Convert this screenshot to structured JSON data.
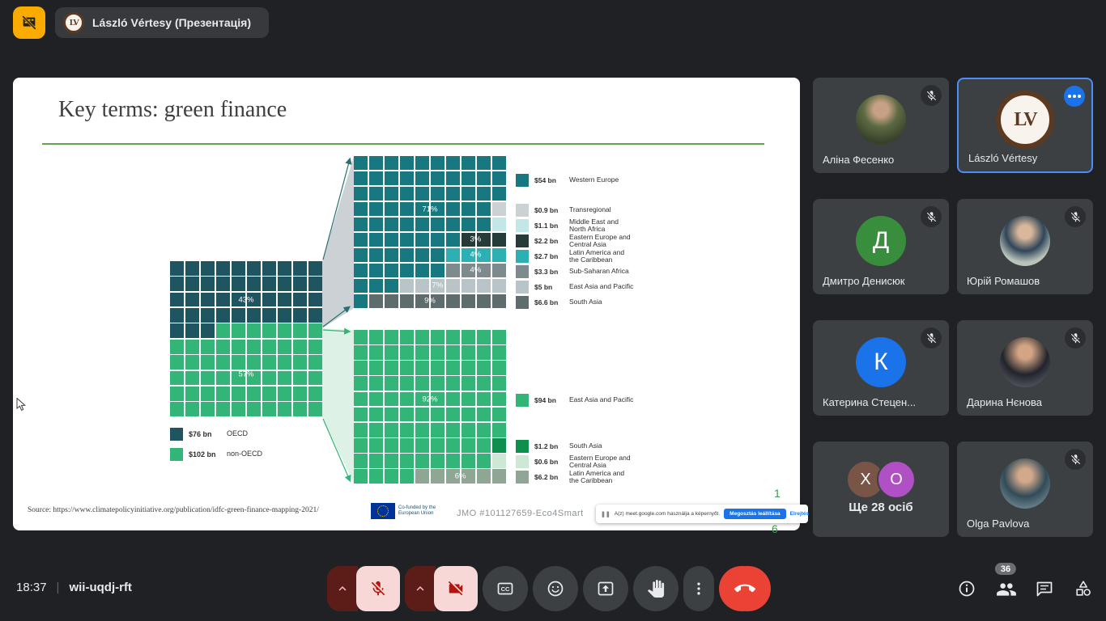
{
  "top_bar": {
    "presenter_chip": {
      "name": "László Vértesy (Презентація)",
      "avatar_monogram": "LV"
    }
  },
  "slide": {
    "title": "Key terms: green finance",
    "source": "Source: https://www.climatepolicyinitiative.org/publication/idfc-green-finance-mapping-2021/",
    "project_code": "JMO  #101127659-Eco4Smart",
    "eu_logo_text": "Co-funded by the\nEuropean Union",
    "page_number_top": "1",
    "page_number_bottom": "6"
  },
  "share_popup": {
    "pause_glyph": "❚❚",
    "message": "A(z) meet.google.com használja a képernyőt.",
    "stop_button": "Megosztás leállítása",
    "hide_link": "Elrejtés"
  },
  "chart_data": {
    "type": "waffle",
    "title": "Key terms: green finance",
    "units": "USD bn",
    "grids": [
      {
        "id": "overall",
        "rows": 10,
        "cols": 10,
        "segments": [
          {
            "name": "OECD",
            "value_label": "$76 bn",
            "value_bn": 76,
            "percent": 43,
            "color": "#1e5560"
          },
          {
            "name": "non-OECD",
            "value_label": "$102 bn",
            "value_bn": 102,
            "percent": 57,
            "color": "#33b577"
          }
        ],
        "row_layout": [
          [
            [
              0,
              10
            ]
          ],
          [
            [
              0,
              10
            ]
          ],
          [
            [
              0,
              10
            ]
          ],
          [
            [
              0,
              10
            ]
          ],
          [
            [
              0,
              3
            ],
            [
              1,
              7
            ]
          ],
          [
            [
              1,
              10
            ]
          ],
          [
            [
              1,
              10
            ]
          ],
          [
            [
              1,
              10
            ]
          ],
          [
            [
              1,
              10
            ]
          ],
          [
            [
              1,
              10
            ]
          ]
        ],
        "labels": [
          {
            "text": "43%",
            "row": 3,
            "col": 5.5
          },
          {
            "text": "57%",
            "row": 7.8,
            "col": 5.5
          }
        ]
      },
      {
        "id": "oecd",
        "rows": 10,
        "cols": 10,
        "segments": [
          {
            "name": "Western Europe",
            "value_label": "$54 bn",
            "value_bn": 54,
            "percent": 71,
            "color": "#17797f"
          },
          {
            "name": "Transregional",
            "value_label": "$0.9 bn",
            "value_bn": 0.9,
            "percent": 1,
            "color": "#ccd2d4"
          },
          {
            "name": "Middle East and\nNorth Africa",
            "value_label": "$1.1 bn",
            "value_bn": 1.1,
            "percent": 1,
            "color": "#c3e6e8"
          },
          {
            "name": "Eastern Europe and\nCentral Asia",
            "value_label": "$2.2 bn",
            "value_bn": 2.2,
            "percent": 3,
            "color": "#253c3a"
          },
          {
            "name": "Latin America and\nthe Caribbean",
            "value_label": "$2.7 bn",
            "value_bn": 2.7,
            "percent": 4,
            "color": "#2cb0b4"
          },
          {
            "name": "Sub-Saharan Africa",
            "value_label": "$3.3 bn",
            "value_bn": 3.3,
            "percent": 4,
            "color": "#7d8b8e"
          },
          {
            "name": "East Asia and Pacific",
            "value_label": "$5 bn",
            "value_bn": 5,
            "percent": 7,
            "color": "#b9c4c8"
          },
          {
            "name": "South Asia",
            "value_label": "$6.6 bn",
            "value_bn": 6.6,
            "percent": 9,
            "color": "#5e6c6d"
          }
        ],
        "row_layout": [
          [
            [
              0,
              10
            ]
          ],
          [
            [
              0,
              10
            ]
          ],
          [
            [
              0,
              10
            ]
          ],
          [
            [
              0,
              9
            ],
            [
              1,
              1
            ]
          ],
          [
            [
              0,
              9
            ],
            [
              2,
              1
            ]
          ],
          [
            [
              0,
              7
            ],
            [
              3,
              3
            ]
          ],
          [
            [
              0,
              6
            ],
            [
              4,
              4
            ]
          ],
          [
            [
              0,
              6
            ],
            [
              5,
              4
            ]
          ],
          [
            [
              0,
              3
            ],
            [
              6,
              7
            ]
          ],
          [
            [
              0,
              1
            ],
            [
              7,
              9
            ]
          ]
        ],
        "labels": [
          {
            "text": "71%",
            "row": 4,
            "col": 5.5
          },
          {
            "text": "3%",
            "row": 6,
            "col": 8.5
          },
          {
            "text": "4%",
            "row": 7,
            "col": 8.5
          },
          {
            "text": "4%",
            "row": 8,
            "col": 8.5
          },
          {
            "text": "7%",
            "row": 9,
            "col": 6
          },
          {
            "text": "9%",
            "row": 10,
            "col": 5.5
          }
        ]
      },
      {
        "id": "nonoecd",
        "rows": 10,
        "cols": 10,
        "segments": [
          {
            "name": "East Asia and Pacific",
            "value_label": "$94 bn",
            "value_bn": 94,
            "percent": 92,
            "color": "#33b577"
          },
          {
            "name": "South Asia",
            "value_label": "$1.2 bn",
            "value_bn": 1.2,
            "percent": 1,
            "color": "#0f8f4e"
          },
          {
            "name": "Eastern Europe and\nCentral Asia",
            "value_label": "$0.6 bn",
            "value_bn": 0.6,
            "percent": 1,
            "color": "#cde9d6"
          },
          {
            "name": "Latin America and\nthe Caribbean",
            "value_label": "$6.2 bn",
            "value_bn": 6.2,
            "percent": 6,
            "color": "#8fa695"
          }
        ],
        "row_layout": [
          [
            [
              0,
              10
            ]
          ],
          [
            [
              0,
              10
            ]
          ],
          [
            [
              0,
              10
            ]
          ],
          [
            [
              0,
              10
            ]
          ],
          [
            [
              0,
              10
            ]
          ],
          [
            [
              0,
              10
            ]
          ],
          [
            [
              0,
              10
            ]
          ],
          [
            [
              0,
              9
            ],
            [
              1,
              1
            ]
          ],
          [
            [
              0,
              9
            ],
            [
              2,
              1
            ]
          ],
          [
            [
              0,
              4
            ],
            [
              3,
              6
            ]
          ]
        ],
        "labels": [
          {
            "text": "92%",
            "row": 5,
            "col": 5.5
          },
          {
            "text": "6%",
            "row": 10,
            "col": 7.5
          }
        ]
      }
    ]
  },
  "participants": [
    {
      "name": "Аліна Фесенко",
      "avatar": {
        "kind": "photo",
        "id": "alina"
      },
      "muted": true
    },
    {
      "name": "László Vértesy",
      "avatar": {
        "kind": "logo",
        "monogram": "LV"
      },
      "muted": false,
      "active": true,
      "has_more_button": true
    },
    {
      "name": "Дмитро Денисюк",
      "avatar": {
        "kind": "initial",
        "letter": "Д",
        "color": "#388e3c"
      },
      "muted": true
    },
    {
      "name": "Юрій Ромашов",
      "avatar": {
        "kind": "photo",
        "id": "yurii"
      },
      "muted": true
    },
    {
      "name": "Катерина Стецен...",
      "avatar": {
        "kind": "initial",
        "letter": "К",
        "color": "#1a73e8"
      },
      "muted": true
    },
    {
      "name": "Дарина Нєнова",
      "avatar": {
        "kind": "photo",
        "id": "daryna"
      },
      "muted": true
    },
    {
      "name": "Ще 28 осіб",
      "avatar": {
        "kind": "overflow",
        "items": [
          {
            "letter": "X",
            "color": "#795548"
          },
          {
            "letter": "O",
            "color": "#b14fc4"
          }
        ]
      },
      "muted": false,
      "centered": true
    },
    {
      "name": "Olga Pavlova",
      "avatar": {
        "kind": "photo",
        "id": "olga"
      },
      "muted": true
    }
  ],
  "bottom_bar": {
    "time": "18:37",
    "divider": "|",
    "meeting_code": "wii-uqdj-rft",
    "controls": [
      {
        "name": "mic",
        "type": "split",
        "state": "off"
      },
      {
        "name": "camera",
        "type": "split",
        "state": "off"
      },
      {
        "name": "captions"
      },
      {
        "name": "reactions"
      },
      {
        "name": "present"
      },
      {
        "name": "raise-hand"
      },
      {
        "name": "more-options"
      },
      {
        "name": "end-call",
        "type": "danger"
      }
    ],
    "right_icons": [
      {
        "name": "info"
      },
      {
        "name": "people",
        "badge": "36"
      },
      {
        "name": "chat"
      },
      {
        "name": "activities"
      }
    ]
  }
}
